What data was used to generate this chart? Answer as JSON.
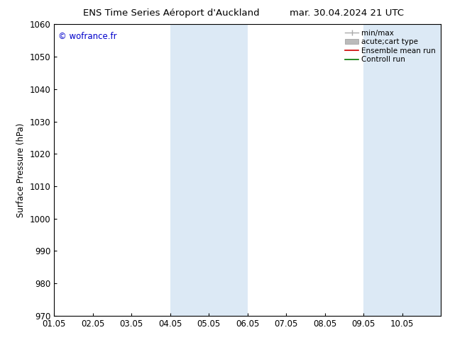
{
  "title_left": "ENS Time Series Aéroport d'Auckland",
  "title_right": "mar. 30.04.2024 21 UTC",
  "ylabel": "Surface Pressure (hPa)",
  "watermark": "© wofrance.fr",
  "watermark_color": "#0000cc",
  "ylim": [
    970,
    1060
  ],
  "yticks": [
    970,
    980,
    990,
    1000,
    1010,
    1020,
    1030,
    1040,
    1050,
    1060
  ],
  "xtick_labels": [
    "01.05",
    "02.05",
    "03.05",
    "04.05",
    "05.05",
    "06.05",
    "07.05",
    "08.05",
    "09.05",
    "10.05"
  ],
  "shaded_bands": [
    {
      "x0": "2024-05-04",
      "x1": "2024-05-05",
      "color": "#dce9f5"
    },
    {
      "x0": "2024-05-05",
      "x1": "2024-05-06",
      "color": "#dce9f5"
    },
    {
      "x0": "2024-05-09",
      "x1": "2024-05-10",
      "color": "#dce9f5"
    },
    {
      "x0": "2024-05-10",
      "x1": "2024-05-11",
      "color": "#dce9f5"
    }
  ],
  "legend_entries": [
    {
      "label": "min/max",
      "color": "#aaaaaa",
      "lw": 1.0,
      "type": "minmax"
    },
    {
      "label": "acute;cart type",
      "color": "#bbbbbb",
      "lw": 5,
      "type": "band"
    },
    {
      "label": "Ensemble mean run",
      "color": "#cc0000",
      "lw": 1.2,
      "type": "line"
    },
    {
      "label": "Controll run",
      "color": "#007700",
      "lw": 1.2,
      "type": "line"
    }
  ],
  "bg_color": "#ffffff",
  "font_size": 8.5,
  "title_font_size": 9.5
}
